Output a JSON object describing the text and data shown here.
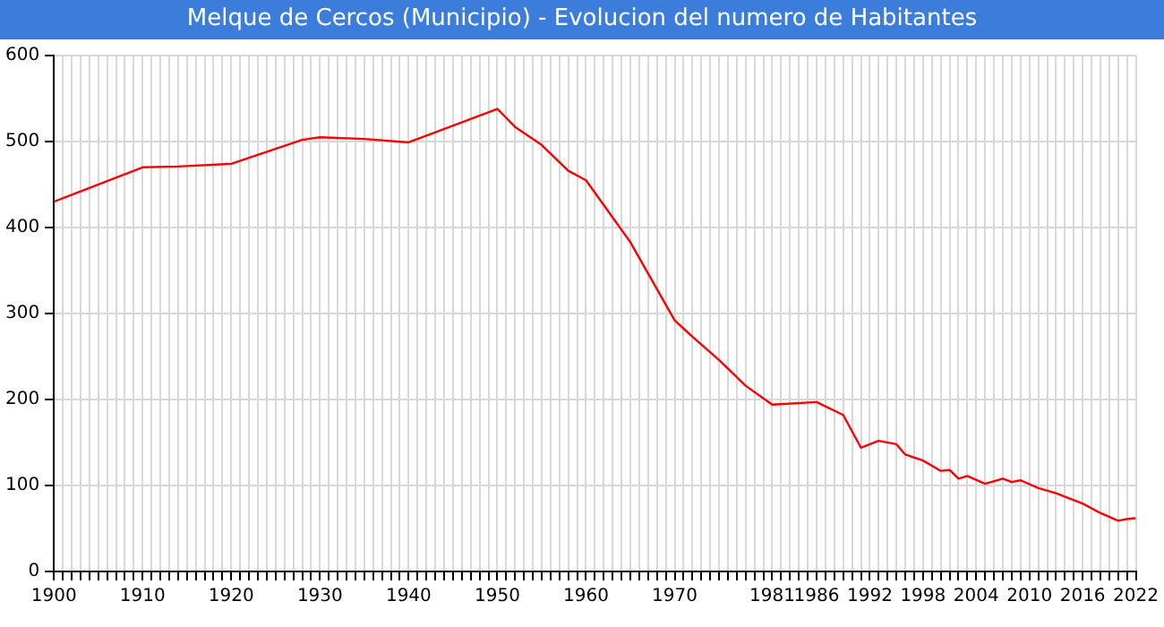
{
  "chart_data": {
    "type": "line",
    "title": "Melque de Cercos (Municipio) - Evolucion del numero de Habitantes",
    "x": [
      1900,
      1910,
      1914,
      1920,
      1928,
      1930,
      1935,
      1940,
      1950,
      1952,
      1955,
      1958,
      1960,
      1965,
      1970,
      1972,
      1975,
      1978,
      1981,
      1986,
      1989,
      1991,
      1993,
      1995,
      1996,
      1998,
      2000,
      2001,
      2002,
      2003,
      2005,
      2007,
      2008,
      2009,
      2011,
      2013,
      2015,
      2016,
      2018,
      2020,
      2021,
      2022
    ],
    "series": [
      {
        "color": "#ff0000",
        "values": [
          430,
          470,
          471,
          474,
          502,
          505,
          503,
          499,
          538,
          517,
          496,
          466,
          455,
          383,
          292,
          273,
          246,
          216,
          194,
          197,
          182,
          144,
          152,
          148,
          136,
          129,
          117,
          118,
          108,
          111,
          102,
          108,
          104,
          106,
          97,
          91,
          83,
          79,
          68,
          59,
          61,
          62
        ]
      }
    ],
    "xlim": [
      1900,
      2022
    ],
    "xticks": [
      1900,
      {
        "value": 1901,
        "label": null
      },
      {
        "value": 1902,
        "label": null
      },
      {
        "value": 1903,
        "label": null
      },
      {
        "value": 1904,
        "label": null
      },
      {
        "value": 1905,
        "label": null
      },
      {
        "value": 1906,
        "label": null
      },
      {
        "value": 1907,
        "label": null
      },
      {
        "value": 1908,
        "label": null
      },
      {
        "value": 1909,
        "label": null
      },
      1910,
      {
        "value": 1911,
        "label": null
      },
      {
        "value": 1912,
        "label": null
      },
      {
        "value": 1913,
        "label": null
      },
      {
        "value": 1914,
        "label": null
      },
      {
        "value": 1915,
        "label": null
      },
      {
        "value": 1916,
        "label": null
      },
      {
        "value": 1917,
        "label": null
      },
      {
        "value": 1918,
        "label": null
      },
      {
        "value": 1919,
        "label": null
      },
      1920,
      {
        "value": 1921,
        "label": null
      },
      {
        "value": 1922,
        "label": null
      },
      {
        "value": 1923,
        "label": null
      },
      {
        "value": 1924,
        "label": null
      },
      {
        "value": 1925,
        "label": null
      },
      {
        "value": 1926,
        "label": null
      },
      {
        "value": 1927,
        "label": null
      },
      {
        "value": 1928,
        "label": null
      },
      {
        "value": 1929,
        "label": null
      },
      1930,
      {
        "value": 1931,
        "label": null
      },
      {
        "value": 1932,
        "label": null
      },
      {
        "value": 1933,
        "label": null
      },
      {
        "value": 1934,
        "label": null
      },
      {
        "value": 1935,
        "label": null
      },
      {
        "value": 1936,
        "label": null
      },
      {
        "value": 1937,
        "label": null
      },
      {
        "value": 1938,
        "label": null
      },
      {
        "value": 1939,
        "label": null
      },
      1940,
      {
        "value": 1941,
        "label": null
      },
      {
        "value": 1942,
        "label": null
      },
      {
        "value": 1943,
        "label": null
      },
      {
        "value": 1944,
        "label": null
      },
      {
        "value": 1945,
        "label": null
      },
      {
        "value": 1946,
        "label": null
      },
      {
        "value": 1947,
        "label": null
      },
      {
        "value": 1948,
        "label": null
      },
      {
        "value": 1949,
        "label": null
      },
      1950,
      {
        "value": 1951,
        "label": null
      },
      {
        "value": 1952,
        "label": null
      },
      {
        "value": 1953,
        "label": null
      },
      {
        "value": 1954,
        "label": null
      },
      {
        "value": 1955,
        "label": null
      },
      {
        "value": 1956,
        "label": null
      },
      {
        "value": 1957,
        "label": null
      },
      {
        "value": 1958,
        "label": null
      },
      {
        "value": 1959,
        "label": null
      },
      1960,
      {
        "value": 1961,
        "label": null
      },
      {
        "value": 1962,
        "label": null
      },
      {
        "value": 1963,
        "label": null
      },
      {
        "value": 1964,
        "label": null
      },
      {
        "value": 1965,
        "label": null
      },
      {
        "value": 1966,
        "label": null
      },
      {
        "value": 1967,
        "label": null
      },
      {
        "value": 1968,
        "label": null
      },
      {
        "value": 1969,
        "label": null
      },
      1970,
      {
        "value": 1971,
        "label": null
      },
      {
        "value": 1972,
        "label": null
      },
      {
        "value": 1973,
        "label": null
      },
      {
        "value": 1974,
        "label": null
      },
      {
        "value": 1975,
        "label": null
      },
      {
        "value": 1976,
        "label": null
      },
      {
        "value": 1977,
        "label": null
      },
      {
        "value": 1978,
        "label": null
      },
      {
        "value": 1979,
        "label": null
      },
      {
        "value": 1980,
        "label": null
      },
      1981,
      {
        "value": 1982,
        "label": null
      },
      {
        "value": 1983,
        "label": null
      },
      {
        "value": 1984,
        "label": null
      },
      {
        "value": 1985,
        "label": null
      },
      1986,
      {
        "value": 1987,
        "label": null
      },
      {
        "value": 1988,
        "label": null
      },
      {
        "value": 1989,
        "label": null
      },
      {
        "value": 1990,
        "label": null
      },
      {
        "value": 1991,
        "label": null
      },
      1992,
      {
        "value": 1993,
        "label": null
      },
      {
        "value": 1994,
        "label": null
      },
      {
        "value": 1995,
        "label": null
      },
      {
        "value": 1996,
        "label": null
      },
      {
        "value": 1997,
        "label": null
      },
      1998,
      {
        "value": 1999,
        "label": null
      },
      {
        "value": 2000,
        "label": null
      },
      {
        "value": 2001,
        "label": null
      },
      {
        "value": 2002,
        "label": null
      },
      {
        "value": 2003,
        "label": null
      },
      2004,
      {
        "value": 2005,
        "label": null
      },
      {
        "value": 2006,
        "label": null
      },
      {
        "value": 2007,
        "label": null
      },
      {
        "value": 2008,
        "label": null
      },
      {
        "value": 2009,
        "label": null
      },
      2010,
      {
        "value": 2011,
        "label": null
      },
      {
        "value": 2012,
        "label": null
      },
      {
        "value": 2013,
        "label": null
      },
      {
        "value": 2014,
        "label": null
      },
      {
        "value": 2015,
        "label": null
      },
      2016,
      {
        "value": 2017,
        "label": null
      },
      {
        "value": 2018,
        "label": null
      },
      {
        "value": 2019,
        "label": null
      },
      {
        "value": 2020,
        "label": null
      },
      {
        "value": 2021,
        "label": null
      },
      2022
    ],
    "ylim": [
      0,
      600
    ],
    "yticks": [
      0,
      100,
      200,
      300,
      400,
      500,
      600
    ],
    "grid": true,
    "marker": "none",
    "line_style": "solid"
  }
}
